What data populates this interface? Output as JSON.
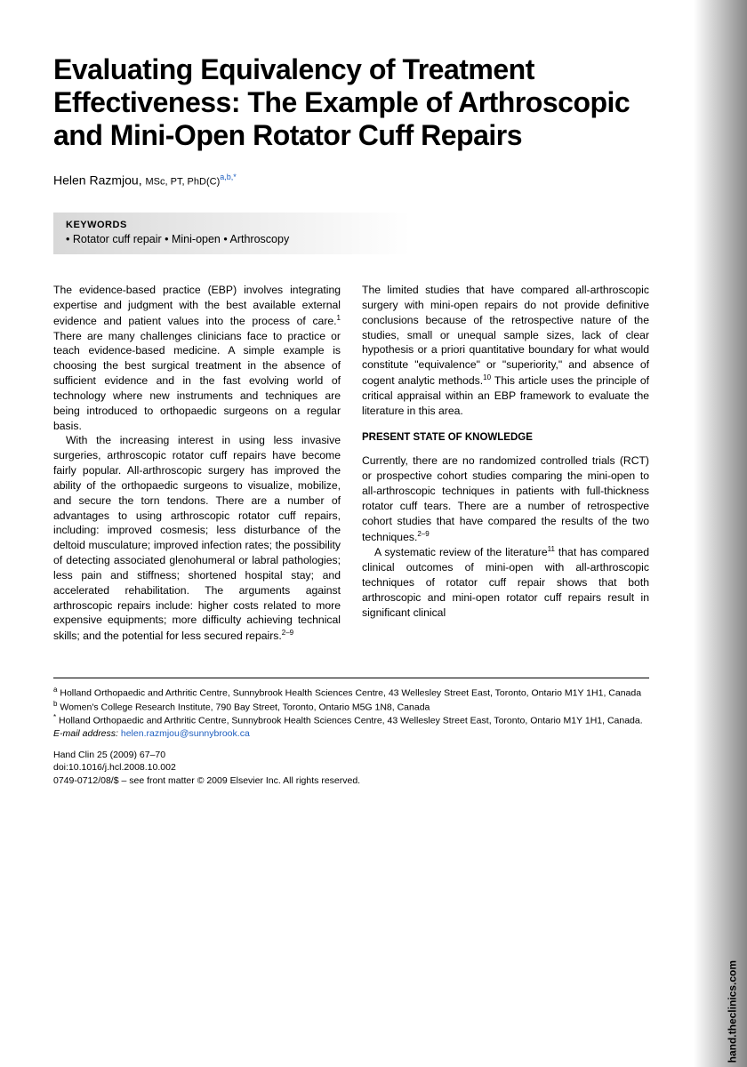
{
  "title": "Evaluating Equivalency of Treatment Effectiveness: The Example of Arthroscopic and Mini-Open Rotator Cuff Repairs",
  "author": {
    "name": "Helen Razmjou,",
    "degrees": "MSc, PT, PhD(C)",
    "affiliations": "a,b,*"
  },
  "keywords": {
    "label": "KEYWORDS",
    "text": "• Rotator cuff repair • Mini-open • Arthroscopy"
  },
  "body": {
    "col1_p1": "The evidence-based practice (EBP) involves integrating expertise and judgment with the best available external evidence and patient values into the process of care.",
    "col1_p1_ref": "1",
    "col1_p1_cont": " There are many challenges clinicians face to practice or teach evidence-based medicine. A simple example is choosing the best surgical treatment in the absence of sufficient evidence and in the fast evolving world of technology where new instruments and techniques are being introduced to orthopaedic surgeons on a regular basis.",
    "col1_p2": "With the increasing interest in using less invasive surgeries, arthroscopic rotator cuff repairs have become fairly popular. All-arthroscopic surgery has improved the ability of the orthopaedic surgeons to visualize, mobilize, and secure the torn tendons. There are a number of advantages to using arthroscopic rotator cuff repairs, including: improved cosmesis; less disturbance of the deltoid musculature; improved infection rates; the possibility of detecting associated glenohumeral or labral pathologies; less pain and stiffness; shortened hospital stay; and accelerated rehabilitation. The arguments against arthroscopic repairs include: higher costs related to more expensive equipments; more difficulty achieving technical skills; and the potential for less secured repairs.",
    "col1_p2_ref": "2–9",
    "col2_p1": "The limited studies that have compared all-arthroscopic surgery with mini-open repairs do not provide definitive conclusions because of the retrospective nature of the studies, small or unequal sample sizes, lack of clear hypothesis or a priori quantitative boundary for what would constitute \"equivalence\" or \"superiority,\" and absence of cogent analytic methods.",
    "col2_p1_ref": "10",
    "col2_p1_cont": " This article uses the principle of critical appraisal within an EBP framework to evaluate the literature in this area.",
    "section1_head": "PRESENT STATE OF KNOWLEDGE",
    "col2_p2": "Currently, there are no randomized controlled trials (RCT) or prospective cohort studies comparing the mini-open to all-arthroscopic techniques in patients with full-thickness rotator cuff tears. There are a number of retrospective cohort studies that have compared the results of the two techniques.",
    "col2_p2_ref": "2–9",
    "col2_p3": "A systematic review of the literature",
    "col2_p3_ref": "11",
    "col2_p3_cont": " that has compared clinical outcomes of mini-open with all-arthroscopic techniques of rotator cuff repair shows that both arthroscopic and mini-open rotator cuff repairs result in significant clinical"
  },
  "footer": {
    "aff_a": "Holland Orthopaedic and Arthritic Centre, Sunnybrook Health Sciences Centre, 43 Wellesley Street East, Toronto, Ontario M1Y 1H1, Canada",
    "aff_b": "Women's College Research Institute, 790 Bay Street, Toronto, Ontario M5G 1N8, Canada",
    "aff_star": "Holland Orthopaedic and Arthritic Centre, Sunnybrook Health Sciences Centre, 43 Wellesley Street East, Toronto, Ontario M1Y 1H1, Canada.",
    "email_label": "E-mail address:",
    "email": "helen.razmjou@sunnybrook.ca",
    "citation1": "Hand Clin 25 (2009) 67–70",
    "citation2": "doi:10.1016/j.hcl.2008.10.002",
    "citation3": "0749-0712/08/$ – see front matter © 2009 Elsevier Inc. All rights reserved."
  },
  "side_label": "hand.theclinics.com"
}
